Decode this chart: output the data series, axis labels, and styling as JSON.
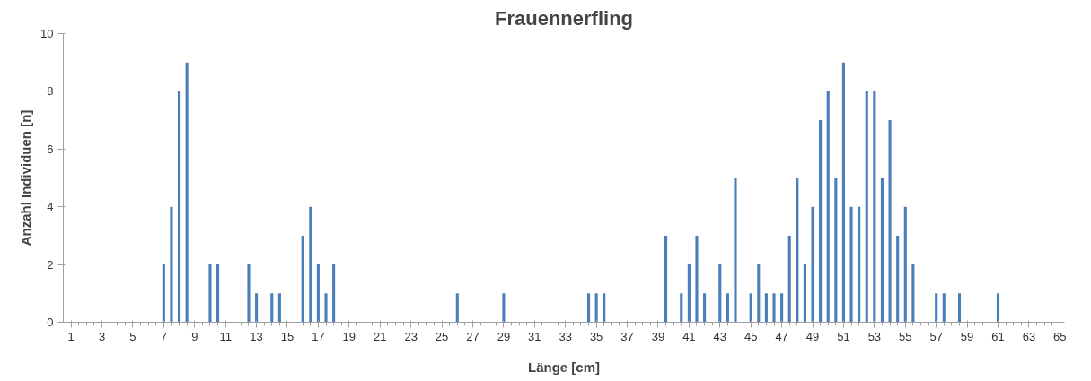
{
  "chart_data": {
    "type": "bar",
    "title": "Frauennerfling",
    "xlabel": "Länge [cm]",
    "ylabel": "Anzahl Individuen [n]",
    "x": [
      7,
      7.5,
      8,
      8.5,
      10,
      10.5,
      12.5,
      13,
      14,
      14.5,
      16,
      16.5,
      17,
      17.5,
      18,
      26,
      29,
      34.5,
      35,
      35.5,
      39.5,
      40.5,
      41,
      41.5,
      42,
      43,
      43.5,
      44,
      45,
      45.5,
      46,
      46.5,
      47,
      47.5,
      48,
      48.5,
      49,
      49.5,
      50,
      50.5,
      51,
      51.5,
      52,
      52.5,
      53,
      53.5,
      54,
      54.5,
      55,
      55.5,
      57,
      57.5,
      58.5,
      61
    ],
    "values": [
      2,
      4,
      8,
      9,
      2,
      2,
      2,
      1,
      1,
      1,
      3,
      4,
      2,
      1,
      2,
      1,
      1,
      1,
      1,
      1,
      3,
      1,
      2,
      3,
      1,
      2,
      1,
      5,
      1,
      2,
      1,
      1,
      1,
      3,
      5,
      2,
      4,
      7,
      8,
      5,
      9,
      4,
      4,
      8,
      8,
      5,
      7,
      3,
      4,
      2,
      1,
      1,
      1,
      1
    ],
    "color": "#4a7ebb",
    "xlim": [
      0.5,
      65.3
    ],
    "xticks": [
      1,
      3,
      5,
      7,
      9,
      11,
      13,
      15,
      17,
      19,
      21,
      23,
      25,
      27,
      29,
      31,
      33,
      35,
      37,
      39,
      41,
      43,
      45,
      47,
      49,
      51,
      53,
      55,
      57,
      59,
      61,
      63,
      65
    ],
    "ylim": [
      0,
      10
    ],
    "yticks": [
      0,
      2,
      4,
      6,
      8,
      10
    ],
    "grid": false
  }
}
